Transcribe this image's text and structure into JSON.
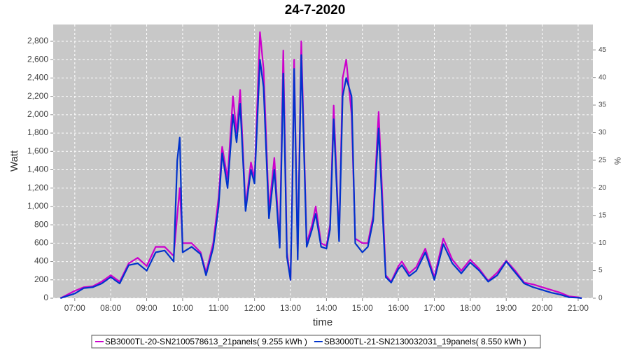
{
  "chart_data": {
    "type": "line",
    "title": "24-7-2020",
    "x_label": "time",
    "y_label": "Watt",
    "y2_label": "%",
    "x": [
      6.6,
      6.75,
      7.0,
      7.25,
      7.5,
      7.75,
      8.0,
      8.25,
      8.5,
      8.75,
      9.0,
      9.25,
      9.5,
      9.75,
      9.85,
      9.92,
      10.0,
      10.25,
      10.5,
      10.65,
      10.85,
      11.0,
      11.1,
      11.25,
      11.4,
      11.5,
      11.6,
      11.75,
      11.9,
      12.0,
      12.15,
      12.25,
      12.4,
      12.55,
      12.7,
      12.8,
      12.9,
      13.0,
      13.05,
      13.1,
      13.2,
      13.3,
      13.45,
      13.6,
      13.7,
      13.85,
      14.0,
      14.1,
      14.2,
      14.35,
      14.45,
      14.55,
      14.7,
      14.8,
      15.0,
      15.15,
      15.3,
      15.45,
      15.6,
      15.65,
      15.8,
      16.0,
      16.1,
      16.3,
      16.5,
      16.75,
      17.0,
      17.25,
      17.5,
      17.75,
      18.0,
      18.25,
      18.5,
      18.75,
      19.0,
      19.25,
      19.5,
      19.75,
      20.0,
      20.25,
      20.5,
      20.75,
      21.0,
      21.1
    ],
    "series": [
      {
        "name": "SB3000TL-20-SN2100578613_21panels( 9.255 kWh )",
        "color": "#cc00cc",
        "values": [
          0,
          30,
          80,
          120,
          130,
          180,
          250,
          180,
          380,
          440,
          350,
          560,
          560,
          460,
          900,
          1200,
          600,
          600,
          500,
          280,
          600,
          1100,
          1650,
          1300,
          2200,
          1800,
          2270,
          1000,
          1480,
          1300,
          2900,
          2500,
          950,
          1530,
          600,
          2700,
          500,
          200,
          1200,
          2600,
          450,
          2800,
          600,
          800,
          1000,
          600,
          570,
          800,
          2100,
          650,
          2400,
          2600,
          2000,
          650,
          600,
          600,
          900,
          2030,
          700,
          250,
          180,
          350,
          400,
          270,
          340,
          540,
          230,
          650,
          420,
          300,
          420,
          320,
          190,
          280,
          410,
          300,
          170,
          150,
          120,
          90,
          60,
          20,
          10,
          0
        ]
      },
      {
        "name": "SB3000TL-21-SN2130032031_19panels( 8.550 kWh )",
        "color": "#0033cc",
        "values": [
          0,
          20,
          50,
          110,
          120,
          160,
          230,
          160,
          360,
          380,
          300,
          500,
          520,
          400,
          1500,
          1750,
          500,
          560,
          480,
          250,
          550,
          1000,
          1580,
          1200,
          2000,
          1700,
          2120,
          950,
          1400,
          1250,
          2600,
          2300,
          870,
          1400,
          550,
          2450,
          450,
          200,
          1150,
          2500,
          420,
          2650,
          560,
          750,
          920,
          560,
          540,
          750,
          1950,
          620,
          2200,
          2400,
          2200,
          600,
          500,
          560,
          850,
          1850,
          600,
          230,
          170,
          320,
          360,
          240,
          300,
          500,
          200,
          590,
          380,
          270,
          390,
          300,
          180,
          250,
          400,
          280,
          160,
          120,
          90,
          60,
          40,
          10,
          5,
          0
        ]
      }
    ],
    "xlim": [
      6.4,
      21.41
    ],
    "xticks": [
      {
        "value": 7,
        "label": "07:00"
      },
      {
        "value": 8,
        "label": "08:00"
      },
      {
        "value": 9,
        "label": "09:00"
      },
      {
        "value": 10,
        "label": "10:00"
      },
      {
        "value": 11,
        "label": "11:00"
      },
      {
        "value": 12,
        "label": "12:00"
      },
      {
        "value": 13,
        "label": "13:00"
      },
      {
        "value": 14,
        "label": "14:00"
      },
      {
        "value": 15,
        "label": "15:00"
      },
      {
        "value": 16,
        "label": "16:00"
      },
      {
        "value": 17,
        "label": "17:00"
      },
      {
        "value": 18,
        "label": "18:00"
      },
      {
        "value": 19,
        "label": "19:00"
      },
      {
        "value": 20,
        "label": "20:00"
      },
      {
        "value": 21,
        "label": "21:00"
      }
    ],
    "ylim": [
      0,
      2983
    ],
    "yticks": [
      0,
      200,
      400,
      600,
      800,
      {
        "value": 1000,
        "label": "1,000"
      },
      {
        "value": 1200,
        "label": "1,200"
      },
      {
        "value": 1400,
        "label": "1,400"
      },
      {
        "value": 1600,
        "label": "1,600"
      },
      {
        "value": 1800,
        "label": "1,800"
      },
      {
        "value": 2000,
        "label": "2,000"
      },
      {
        "value": 2200,
        "label": "2,200"
      },
      {
        "value": 2400,
        "label": "2,400"
      },
      {
        "value": 2600,
        "label": "2,600"
      },
      {
        "value": 2800,
        "label": "2,800"
      }
    ],
    "y2lim": [
      0,
      49.6
    ],
    "y2ticks": [
      0,
      5,
      10,
      15,
      20,
      25,
      30,
      35,
      40,
      45
    ],
    "grid": true,
    "legend": "bottom"
  }
}
